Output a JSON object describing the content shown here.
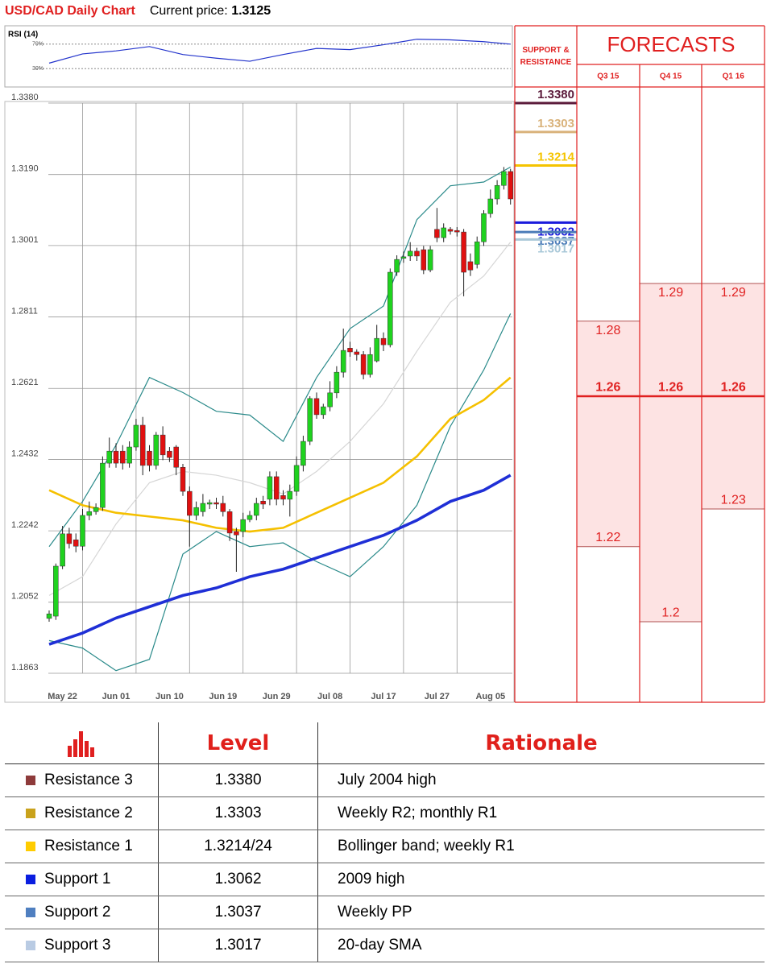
{
  "header": {
    "title": "USD/CAD Daily Chart",
    "price_label": "Current price:",
    "price": 1.3125
  },
  "chart_data": [
    {
      "type": "candlestick",
      "categories": [
        null,
        null,
        "May 22",
        null,
        null,
        null,
        null,
        null,
        null,
        null,
        "Jun 01",
        null,
        null,
        null,
        null,
        null,
        null,
        null,
        "Jun 10",
        null,
        null,
        null,
        null,
        null,
        null,
        null,
        "Jun 19",
        null,
        null,
        null,
        null,
        null,
        null,
        null,
        "Jun 29",
        null,
        null,
        null,
        null,
        null,
        null,
        null,
        "Jul 08",
        null,
        null,
        null,
        null,
        null,
        null,
        null,
        "Jul 17",
        null,
        null,
        null,
        null,
        null,
        null,
        null,
        "Jul 27",
        null,
        null,
        null,
        null,
        null,
        null,
        null,
        "Aug 05",
        null,
        null,
        null
      ],
      "open": [
        1.2009,
        1.2015,
        1.2148,
        1.2234,
        1.2218,
        1.2201,
        1.2283,
        1.2293,
        1.2304,
        1.2422,
        1.2454,
        1.2454,
        1.2422,
        1.2465,
        1.2523,
        1.2454,
        1.2416,
        1.2497,
        1.2454,
        1.2465,
        1.2411,
        1.2347,
        1.2283,
        1.2293,
        1.2313,
        1.2317,
        1.2315,
        1.2293,
        1.224,
        1.224,
        1.2272,
        1.2283,
        1.2321,
        1.2326,
        1.2386,
        1.2336,
        1.2326,
        1.2347,
        1.2416,
        1.248,
        1.2594,
        1.2551,
        1.2572,
        1.2609,
        1.2664,
        1.2728,
        1.2718,
        1.2711,
        1.2658,
        1.2694,
        1.2754,
        1.2737,
        1.293,
        1.2967,
        1.2973,
        1.2986,
        1.299,
        1.2936,
        1.3044,
        1.3022,
        1.3044,
        1.3041,
        1.3037,
        1.2958,
        1.2951,
        1.3011,
        1.3086,
        1.3125,
        1.3161,
        1.3198
      ],
      "high": [
        1.203,
        1.2155,
        1.2255,
        1.225,
        1.2235,
        1.23,
        1.232,
        1.2315,
        1.244,
        1.249,
        1.2475,
        1.247,
        1.248,
        1.254,
        1.2545,
        1.247,
        1.2505,
        1.252,
        1.2465,
        1.247,
        1.242,
        1.236,
        1.232,
        1.234,
        1.2325,
        1.233,
        1.2335,
        1.23,
        1.225,
        1.229,
        1.2295,
        1.233,
        1.2335,
        1.24,
        1.24,
        1.235,
        1.2365,
        1.244,
        1.2495,
        1.26,
        1.261,
        1.258,
        1.264,
        1.268,
        1.278,
        1.2745,
        1.2725,
        1.272,
        1.273,
        1.279,
        1.277,
        1.294,
        1.2975,
        1.2985,
        1.301,
        1.2995,
        1.3,
        1.3,
        1.3101,
        1.306,
        1.305,
        1.305,
        1.3045,
        1.298,
        1.3025,
        1.3095,
        1.315,
        1.3175,
        1.321,
        1.3205
      ],
      "low": [
        1.2,
        1.2005,
        1.214,
        1.2195,
        1.2185,
        1.219,
        1.227,
        1.2285,
        1.2295,
        1.241,
        1.241,
        1.2405,
        1.241,
        1.2455,
        1.239,
        1.24,
        1.2405,
        1.243,
        1.2425,
        1.239,
        1.2335,
        1.22,
        1.227,
        1.228,
        1.23,
        1.23,
        1.228,
        1.2215,
        1.2133,
        1.2225,
        1.2265,
        1.227,
        1.23,
        1.231,
        1.231,
        1.231,
        1.228,
        1.2335,
        1.24,
        1.247,
        1.254,
        1.254,
        1.256,
        1.2595,
        1.265,
        1.2705,
        1.2695,
        1.2645,
        1.265,
        1.269,
        1.272,
        1.273,
        1.292,
        1.2955,
        1.296,
        1.296,
        1.2925,
        1.293,
        1.301,
        1.301,
        1.303,
        1.3025,
        1.2866,
        1.292,
        1.294,
        1.3,
        1.3075,
        1.311,
        1.315,
        1.311
      ],
      "close": [
        1.2021,
        1.2148,
        1.2234,
        1.2208,
        1.2201,
        1.2283,
        1.2293,
        1.2304,
        1.2422,
        1.2454,
        1.2422,
        1.2422,
        1.2465,
        1.2523,
        1.2416,
        1.2416,
        1.2497,
        1.2444,
        1.2437,
        1.2411,
        1.2347,
        1.2283,
        1.2304,
        1.2315,
        1.2317,
        1.2313,
        1.2293,
        1.2236,
        1.2231,
        1.2272,
        1.2283,
        1.2315,
        1.2313,
        1.2386,
        1.2326,
        1.2326,
        1.2347,
        1.2416,
        1.248,
        1.2594,
        1.2551,
        1.2572,
        1.2609,
        1.2664,
        1.2722,
        1.2718,
        1.2711,
        1.2658,
        1.2711,
        1.2754,
        1.2737,
        1.293,
        1.2964,
        1.2971,
        1.2986,
        1.2973,
        1.2936,
        1.299,
        1.3022,
        1.3048,
        1.3039,
        1.3037,
        1.293,
        1.2936,
        1.3011,
        1.3086,
        1.3125,
        1.3161,
        1.3198,
        1.3125
      ],
      "up_color": "#1fd21f",
      "down_color": "#e01010",
      "lines": [
        {
          "color": "#d6d6d6",
          "x": [
            0,
            5,
            10,
            15,
            20,
            25,
            30,
            35,
            40,
            45,
            50,
            55,
            60,
            65,
            69
          ],
          "values": [
            1.207,
            1.212,
            1.226,
            1.237,
            1.24,
            1.239,
            1.237,
            1.234,
            1.24,
            1.248,
            1.258,
            1.272,
            1.285,
            1.292,
            1.301
          ]
        },
        {
          "color": "#2a8a8a",
          "x": [
            0,
            5,
            10,
            15,
            20,
            25,
            30,
            35,
            40,
            45,
            50,
            55,
            60,
            65,
            69
          ],
          "values": [
            1.22,
            1.232,
            1.247,
            1.265,
            1.261,
            1.256,
            1.255,
            1.248,
            1.265,
            1.278,
            1.284,
            1.307,
            1.316,
            1.317,
            1.321
          ]
        },
        {
          "color": "#2a8a8a",
          "x": [
            0,
            5,
            10,
            15,
            20,
            25,
            30,
            35,
            40,
            45,
            50,
            55,
            60,
            65,
            69
          ],
          "values": [
            1.195,
            1.193,
            1.187,
            1.19,
            1.218,
            1.224,
            1.22,
            1.221,
            1.216,
            1.212,
            1.22,
            1.231,
            1.252,
            1.267,
            1.282
          ]
        },
        {
          "color": "#f5c000",
          "x": [
            0,
            5,
            10,
            15,
            20,
            25,
            30,
            35,
            40,
            45,
            50,
            55,
            60,
            65,
            69
          ],
          "values": [
            1.235,
            1.231,
            1.229,
            1.228,
            1.227,
            1.225,
            1.224,
            1.225,
            1.229,
            1.233,
            1.237,
            1.244,
            1.254,
            1.259,
            1.265
          ]
        },
        {
          "color": "#1f2fd6",
          "x": [
            0,
            5,
            10,
            15,
            20,
            25,
            30,
            35,
            40,
            45,
            50,
            55,
            60,
            65,
            69
          ],
          "values": [
            1.194,
            1.197,
            1.201,
            1.204,
            1.207,
            1.209,
            1.212,
            1.214,
            1.217,
            1.22,
            1.223,
            1.227,
            1.232,
            1.235,
            1.239
          ]
        }
      ],
      "ylim": [
        1.1863,
        1.338
      ],
      "yticks": [
        {
          "value": 1.338,
          "label": "1.3380"
        },
        {
          "value": 1.319,
          "label": "1.3190"
        },
        1.3001,
        1.2811,
        1.2621,
        1.2432,
        1.2242,
        1.2052,
        1.1863
      ],
      "grid": true
    },
    {
      "type": "line",
      "title": "RSI (14)",
      "color": "#2233cc",
      "x": [
        0,
        5,
        10,
        15,
        20,
        25,
        30,
        35,
        40,
        45,
        50,
        55,
        60,
        65,
        69
      ],
      "values": [
        39,
        54,
        59,
        66,
        53,
        47,
        42,
        53,
        63,
        61,
        69,
        78,
        77,
        74,
        70
      ],
      "ylim": [
        0,
        100
      ],
      "yticks": [
        {
          "value": 70,
          "label": "70%"
        },
        {
          "value": 30,
          "label": "30%"
        }
      ]
    },
    {
      "type": "levels",
      "title": "SUPPORT & RESISTANCE",
      "values": [
        1.338,
        1.3303,
        1.3214,
        1.3062,
        1.3037,
        1.3017
      ],
      "value_labels": [
        "1.3380",
        "1.3303",
        "1.3214",
        "1.3062",
        "1.3037",
        "1.3017"
      ],
      "colors": [
        "#5b1a3a",
        "#d9b27a",
        "#f5c400",
        "#1a1adc",
        "#4a7bb8",
        "#a9c8d8"
      ],
      "ylim": [
        1.1863,
        1.338
      ]
    },
    {
      "type": "range",
      "title": "FORECASTS",
      "categories": [
        "Q3 15",
        "Q4 15",
        "Q1 16"
      ],
      "high": [
        1.28,
        1.29,
        1.29
      ],
      "low": [
        1.22,
        1.2,
        1.23
      ],
      "median": [
        1.26,
        1.26,
        1.26
      ],
      "fill": "#fde3e3",
      "color": "#e02020",
      "ylim": [
        1.1863,
        1.338
      ]
    }
  ],
  "table": {
    "columns": [
      "Level",
      "Rationale"
    ],
    "rows": [
      [
        "Resistance 3",
        "1.3380",
        "July 2004 high"
      ],
      [
        "Resistance 2",
        "1.3303",
        "Weekly R2; monthly R1"
      ],
      [
        "Resistance 1",
        "1.3214/24",
        "Bollinger band; weekly R1"
      ],
      [
        "Support 1",
        "1.3062",
        "2009 high"
      ],
      [
        "Support 2",
        "1.3037",
        "Weekly PP"
      ],
      [
        "Support 3",
        "1.3017",
        "20-day SMA"
      ]
    ],
    "row_colors": [
      "#8e3b3b",
      "#c9a21c",
      "#ffcc00",
      "#0a1ee0",
      "#4f7fc0",
      "#b9cbe3"
    ]
  }
}
